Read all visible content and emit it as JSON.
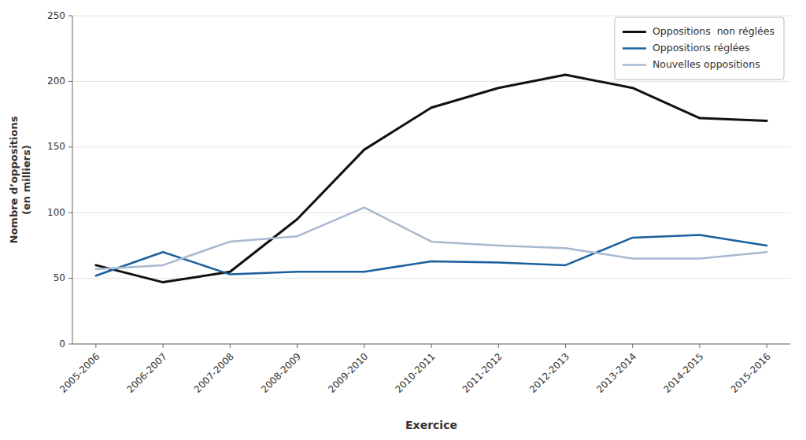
{
  "chart_data": {
    "type": "line",
    "xlabel": "Exercice",
    "ylabel": "Nombre d’oppositions\n(en milliers)",
    "categories": [
      "2005-2006",
      "2006-2007",
      "2007-2008",
      "2008-2009",
      "2009-2010",
      "2010-2011",
      "2011-2012",
      "2012-2013",
      "2013-2014",
      "2014-2015",
      "2015-2016"
    ],
    "series": [
      {
        "name": "Oppositions  non réglées",
        "color": "#111111",
        "values": [
          60,
          47,
          55,
          95,
          148,
          180,
          195,
          205,
          195,
          172,
          170
        ]
      },
      {
        "name": "Oppositions réglées",
        "color": "#1a5f9e",
        "values": [
          52,
          70,
          53,
          55,
          55,
          63,
          62,
          60,
          81,
          83,
          75
        ]
      },
      {
        "name": "Nouvelles oppositions",
        "color": "#a8b8d0",
        "values": [
          57,
          60,
          78,
          82,
          104,
          78,
          75,
          73,
          65,
          65,
          70
        ]
      }
    ],
    "ylim": [
      0,
      250
    ],
    "yticks": [
      0,
      50,
      100,
      150,
      200,
      250
    ],
    "grid": true,
    "legend": "upper right"
  }
}
